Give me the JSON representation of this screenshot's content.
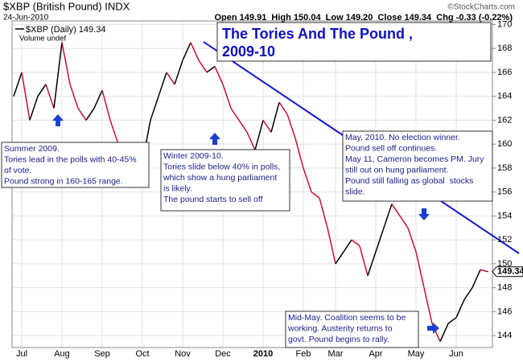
{
  "chart_data": {
    "type": "line",
    "symbol": "$XBP (British Pound) INDX",
    "date": "24-Jun-2010",
    "quote": "Open 149.91  High 150.04  Low 149.20  Close 149.34  Chg -0.33 (-0.22%)",
    "credit": "©StockCharts.com",
    "legend": "$XBP (Daily) 149.34",
    "volume_label": "Volume undef",
    "title": [
      "The Tories And The Pound ,",
      "2009-10"
    ],
    "last_value_label": "149.34",
    "up_color": "#000000",
    "down_color": "#c8102e",
    "categories": [
      null,
      "Jul",
      null,
      null,
      null,
      null,
      "Aug",
      null,
      null,
      null,
      null,
      "Sep",
      null,
      null,
      null,
      null,
      "Oct",
      null,
      null,
      null,
      null,
      "Nov",
      null,
      null,
      null,
      null,
      "Dec",
      null,
      null,
      null,
      null,
      "2010",
      null,
      null,
      null,
      null,
      "Feb",
      null,
      null,
      null,
      "Mar",
      null,
      null,
      null,
      null,
      "Apr",
      null,
      null,
      null,
      null,
      "May",
      null,
      null,
      null,
      null,
      "Jun",
      null,
      null,
      null,
      null
    ],
    "values": [
      164,
      166,
      162,
      164,
      165,
      163,
      168.5,
      165,
      163,
      162,
      163,
      164.5,
      162,
      160,
      158.5,
      160,
      158.5,
      162,
      164,
      166,
      165,
      167,
      168.5,
      167,
      166,
      166.5,
      165,
      163,
      162,
      161,
      159.5,
      162,
      161,
      163.5,
      162.5,
      160.5,
      158,
      156,
      155.5,
      153,
      150,
      151,
      152,
      151.5,
      149,
      151,
      153,
      155,
      154,
      153,
      151,
      148,
      145,
      143.5,
      145,
      145.5,
      147,
      148,
      149.5,
      149.34
    ],
    "ylim": [
      143,
      170.3
    ],
    "yticks": [
      144,
      146,
      148,
      150,
      152,
      154,
      156,
      158,
      160,
      162,
      164,
      166,
      168,
      170
    ],
    "grid": true,
    "annotations": [
      [
        "Summer 2009.",
        "Tories lead in the polls with 40-45%",
        "of vote.",
        "Pound strong in 160-165 range."
      ],
      [
        "Winter 2009-10.",
        "Tories slide below 40% in polls,",
        "which show a hung parliament",
        "is likely.",
        "The pound starts to sell off"
      ],
      [
        "May, 2010. No election winner.",
        "Pound sell off continues.",
        "May 11, Cameron becomes PM. Jury",
        "still out on hung parliament.",
        "Pound still falling as global  stocks",
        "slide."
      ],
      [
        "Mid-May. Coalition seems to be",
        "working. Austerity returns to",
        "govt. Pound begins to rally."
      ]
    ]
  }
}
